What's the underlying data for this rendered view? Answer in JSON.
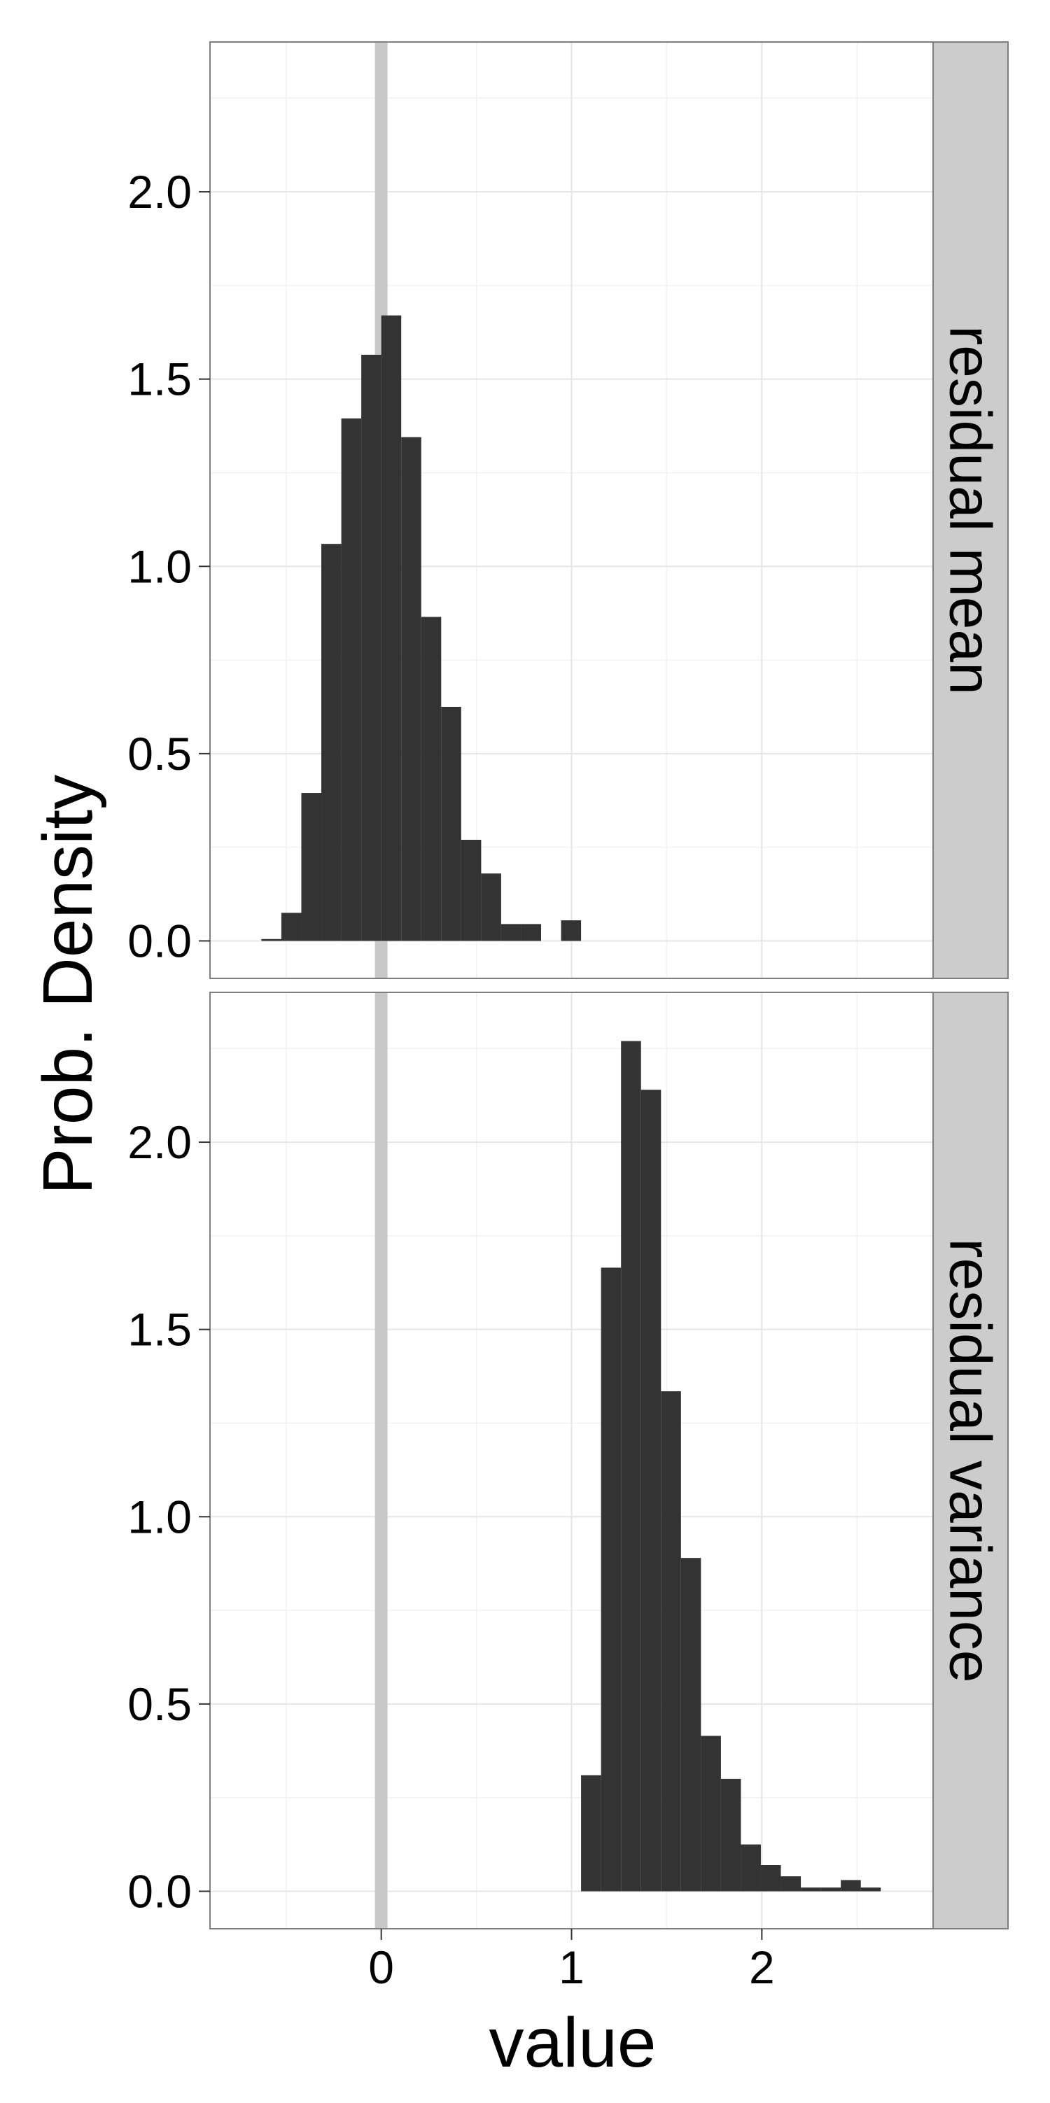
{
  "chart_data": {
    "type": "bar",
    "xlabel": "value",
    "ylabel": "Prob. Density",
    "xlim": [
      -0.9,
      2.9
    ],
    "ylim": [
      -0.1,
      2.4
    ],
    "x_ticks": [
      0,
      1,
      2
    ],
    "y_ticks": [
      0.0,
      0.5,
      1.0,
      1.5,
      2.0
    ],
    "x_tick_labels": [
      "0",
      "1",
      "2"
    ],
    "y_tick_labels": [
      "0.0",
      "0.5",
      "1.0",
      "1.5",
      "2.0"
    ],
    "reference_line": {
      "x": 0,
      "color": "#c8c8c8"
    },
    "grid": true,
    "bar_color": "#333333",
    "bin_width": 0.105,
    "panels": [
      {
        "label": "residual mean",
        "bins": [
          {
            "x0": -0.63,
            "x1": -0.525,
            "value": 0.005
          },
          {
            "x0": -0.525,
            "x1": -0.42,
            "value": 0.075
          },
          {
            "x0": -0.42,
            "x1": -0.315,
            "value": 0.395
          },
          {
            "x0": -0.315,
            "x1": -0.21,
            "value": 1.06
          },
          {
            "x0": -0.21,
            "x1": -0.105,
            "value": 1.395
          },
          {
            "x0": -0.105,
            "x1": 0.0,
            "value": 1.565
          },
          {
            "x0": 0.0,
            "x1": 0.105,
            "value": 1.67
          },
          {
            "x0": 0.105,
            "x1": 0.21,
            "value": 1.345
          },
          {
            "x0": 0.21,
            "x1": 0.315,
            "value": 0.865
          },
          {
            "x0": 0.315,
            "x1": 0.42,
            "value": 0.625
          },
          {
            "x0": 0.42,
            "x1": 0.525,
            "value": 0.27
          },
          {
            "x0": 0.525,
            "x1": 0.63,
            "value": 0.18
          },
          {
            "x0": 0.63,
            "x1": 0.735,
            "value": 0.045
          },
          {
            "x0": 0.735,
            "x1": 0.84,
            "value": 0.045
          },
          {
            "x0": 0.945,
            "x1": 1.05,
            "value": 0.055
          }
        ]
      },
      {
        "label": "residual variance",
        "bins": [
          {
            "x0": 1.05,
            "x1": 1.155,
            "value": 0.31
          },
          {
            "x0": 1.155,
            "x1": 1.26,
            "value": 1.665
          },
          {
            "x0": 1.26,
            "x1": 1.365,
            "value": 2.27
          },
          {
            "x0": 1.365,
            "x1": 1.47,
            "value": 2.14
          },
          {
            "x0": 1.47,
            "x1": 1.575,
            "value": 1.335
          },
          {
            "x0": 1.575,
            "x1": 1.68,
            "value": 0.89
          },
          {
            "x0": 1.68,
            "x1": 1.785,
            "value": 0.415
          },
          {
            "x0": 1.785,
            "x1": 1.89,
            "value": 0.3
          },
          {
            "x0": 1.89,
            "x1": 1.995,
            "value": 0.125
          },
          {
            "x0": 1.995,
            "x1": 2.1,
            "value": 0.07
          },
          {
            "x0": 2.1,
            "x1": 2.205,
            "value": 0.04
          },
          {
            "x0": 2.205,
            "x1": 2.31,
            "value": 0.01
          },
          {
            "x0": 2.31,
            "x1": 2.415,
            "value": 0.01
          },
          {
            "x0": 2.415,
            "x1": 2.52,
            "value": 0.03
          },
          {
            "x0": 2.52,
            "x1": 2.625,
            "value": 0.01
          }
        ]
      }
    ]
  }
}
